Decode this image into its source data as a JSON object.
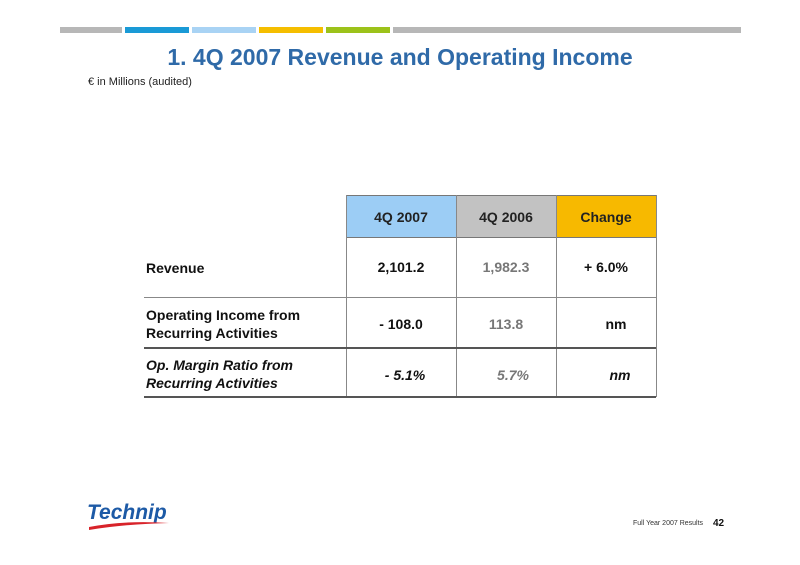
{
  "slide": {
    "title": "1.  4Q 2007 Revenue and Operating Income",
    "subtitle": "€ in Millions (audited)"
  },
  "header_colors": {
    "gray": "#b7b7b7",
    "blue": "#1a9ad6",
    "light_blue": "#a9d3f4",
    "yellow": "#f5be00",
    "green": "#9cc21a",
    "table_4q2007": "#9ccdf5",
    "table_4q2006": "#c2c2c2",
    "table_change": "#f7b900"
  },
  "table": {
    "headers": [
      "4Q 2007",
      "4Q 2006",
      "Change"
    ],
    "rows": [
      {
        "label_line1": "Revenue",
        "label_line2": "",
        "v2007": "2,101.2",
        "v2006": "1,982.3",
        "change": "+ 6.0%"
      },
      {
        "label_line1": "Operating Income from",
        "label_line2": "Recurring Activities",
        "v2007": "- 108.0",
        "v2006": "113.8",
        "change": "nm"
      },
      {
        "label_line1": "Op. Margin Ratio from",
        "label_line2": "Recurring Activities",
        "v2007": "- 5.1%",
        "v2006": "5.7%",
        "change": "nm"
      }
    ]
  },
  "footer": {
    "logo_text": "Technip",
    "report_label": "Full Year 2007 Results",
    "page_number": "42"
  }
}
